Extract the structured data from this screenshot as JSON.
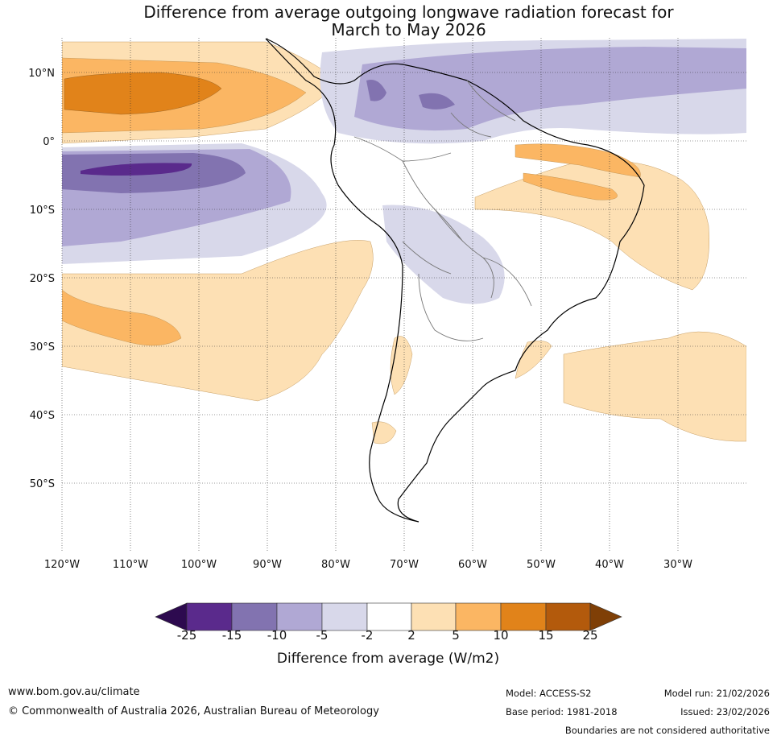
{
  "title": {
    "line1": "Difference from average outgoing longwave radiation forecast for",
    "line2": "March to May 2026"
  },
  "map": {
    "lat_labels": [
      "10°N",
      "0°",
      "10°S",
      "20°S",
      "30°S",
      "40°S",
      "50°S"
    ],
    "lon_labels": [
      "120°W",
      "110°W",
      "100°W",
      "90°W",
      "80°W",
      "70°W",
      "60°W",
      "50°W",
      "40°W",
      "30°W"
    ],
    "extent": {
      "lon_min": -120,
      "lon_max": -20,
      "lat_min": -60,
      "lat_max": 15
    }
  },
  "colorbar": {
    "ticks": [
      "-25",
      "-15",
      "-10",
      "-5",
      "-2",
      "2",
      "5",
      "10",
      "15",
      "25"
    ],
    "colors": [
      "#2d0a4f",
      "#5a2a8c",
      "#8273b0",
      "#b0a8d4",
      "#d8d8ea",
      "#ffffff",
      "#fde0b4",
      "#fbb663",
      "#e1831a",
      "#b35a0c",
      "#7f3f06"
    ],
    "title": "Difference from average (W/m2)"
  },
  "footer": {
    "url": "www.bom.gov.au/climate",
    "copyright": "© Commonwealth of Australia 2026, Australian Bureau of Meteorology",
    "model": "Model: ACCESS-S2",
    "base_period": "Base period: 1981-2018",
    "model_run": "Model run: 21/02/2026",
    "issued": "Issued: 23/02/2026",
    "disclaimer": "Boundaries are not considered authoritative"
  }
}
